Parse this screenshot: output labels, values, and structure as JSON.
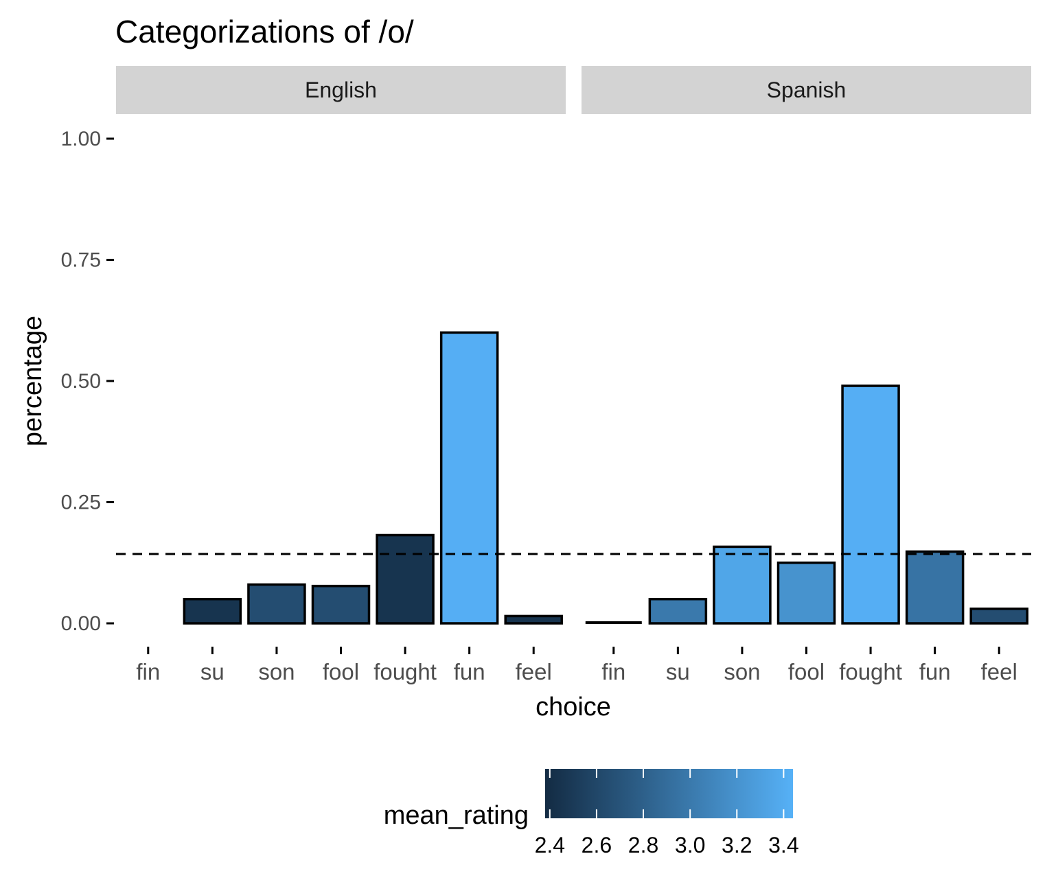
{
  "chart_data": {
    "type": "bar",
    "title": "Categorizations of /o/",
    "xlabel": "choice",
    "ylabel": "percentage",
    "ylim": [
      0,
      1
    ],
    "yticks": [
      "0.00",
      "0.25",
      "0.50",
      "0.75",
      "1.00"
    ],
    "ytick_values": [
      0,
      0.25,
      0.5,
      0.75,
      1.0
    ],
    "categories": [
      "fin",
      "su",
      "son",
      "fool",
      "fought",
      "fun",
      "feel"
    ],
    "reference_line": {
      "y": 0.143,
      "style": "dashed"
    },
    "grid": false,
    "facets": [
      {
        "name": "English",
        "values": [
          0,
          0.05,
          0.08,
          0.077,
          0.182,
          0.6,
          0.015
        ],
        "mean_rating": [
          null,
          2.45,
          2.65,
          2.65,
          2.45,
          3.42,
          2.45
        ]
      },
      {
        "name": "Spanish",
        "values": [
          0,
          0.05,
          0.158,
          0.125,
          0.49,
          0.148,
          0.03
        ],
        "mean_rating": [
          2.4,
          3.0,
          3.35,
          3.2,
          3.42,
          2.95,
          2.65
        ],
        "outline_only": [
          true,
          false,
          false,
          false,
          false,
          false,
          false
        ]
      }
    ],
    "legend": {
      "title": "mean_rating",
      "placement": "bottom",
      "min": 2.38,
      "max": 3.44,
      "ticks": [
        "2.4",
        "2.6",
        "2.8",
        "3.0",
        "3.2",
        "3.4"
      ],
      "tick_values": [
        2.4,
        2.6,
        2.8,
        3.0,
        3.2,
        3.4
      ],
      "color_low": "#132B43",
      "color_high": "#56B1F7"
    },
    "colors": {
      "strip": "#d3d3d3",
      "bar_outline": "#000000",
      "axis_text": "#4d4d4d"
    }
  }
}
